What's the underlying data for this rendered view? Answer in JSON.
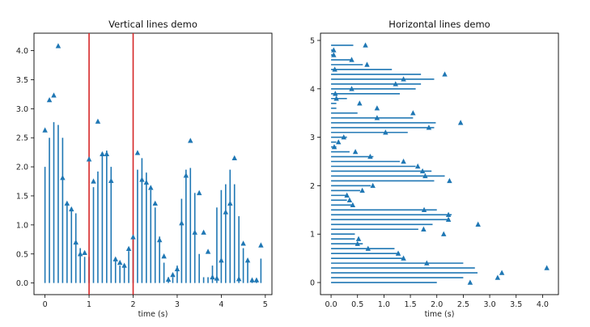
{
  "chart_data": [
    {
      "type": "vlines",
      "title": "Vertical lines demo",
      "xlabel": "time (s)",
      "ylabel": "",
      "xlim": [
        -0.25,
        5.15
      ],
      "ylim": [
        -0.2,
        4.3
      ],
      "xticks": [
        0,
        1,
        2,
        3,
        4,
        5
      ],
      "xtick_labels": [
        "0",
        "1",
        "2",
        "3",
        "4",
        "5"
      ],
      "yticks": [
        0.0,
        0.5,
        1.0,
        1.5,
        2.0,
        2.5,
        3.0,
        3.5,
        4.0
      ],
      "ytick_labels": [
        "0.0",
        "0.5",
        "1.0",
        "1.5",
        "2.0",
        "2.5",
        "3.0",
        "3.5",
        "4.0"
      ],
      "grid": false,
      "line_color": "#1f77b4",
      "marker_color": "#1f77b4",
      "reference_lines": {
        "x": [
          1,
          2
        ],
        "color": "#d62728"
      },
      "x": [
        0.0,
        0.1,
        0.2,
        0.3,
        0.4,
        0.5,
        0.6,
        0.7,
        0.8,
        0.9,
        1.0,
        1.1,
        1.2,
        1.3,
        1.4,
        1.5,
        1.6,
        1.7,
        1.8,
        1.9,
        2.0,
        2.1,
        2.2,
        2.3,
        2.4,
        2.5,
        2.6,
        2.7,
        2.8,
        2.9,
        3.0,
        3.1,
        3.2,
        3.3,
        3.4,
        3.5,
        3.6,
        3.7,
        3.8,
        3.9,
        4.0,
        4.1,
        4.2,
        4.3,
        4.4,
        4.5,
        4.6,
        4.7,
        4.8,
        4.9
      ],
      "line_values": [
        2.0,
        2.5,
        2.77,
        2.72,
        2.5,
        1.35,
        1.3,
        1.2,
        0.6,
        0.45,
        0.45,
        1.65,
        1.92,
        2.25,
        2.28,
        2.0,
        0.4,
        0.3,
        0.3,
        0.55,
        0.75,
        1.95,
        2.15,
        1.9,
        1.6,
        1.3,
        0.8,
        0.35,
        0.1,
        0.1,
        0.3,
        1.45,
        1.95,
        1.98,
        1.55,
        0.5,
        0.1,
        0.1,
        0.3,
        1.3,
        1.6,
        1.7,
        1.95,
        1.7,
        1.15,
        0.6,
        0.4,
        0.05,
        0.05,
        0.42
      ],
      "marker_values": [
        2.63,
        3.15,
        3.23,
        4.08,
        1.81,
        1.37,
        1.27,
        0.7,
        0.5,
        0.52,
        2.13,
        1.75,
        2.78,
        2.22,
        2.22,
        1.76,
        0.41,
        0.35,
        0.3,
        0.59,
        0.79,
        2.24,
        1.78,
        1.73,
        1.64,
        1.37,
        0.74,
        0.46,
        0.06,
        0.14,
        0.24,
        1.03,
        1.85,
        2.45,
        0.87,
        1.55,
        0.87,
        0.54,
        0.1,
        0.08,
        0.39,
        1.22,
        1.37,
        2.15,
        0.07,
        0.68,
        0.39,
        0.05,
        0.05,
        0.65
      ]
    },
    {
      "type": "hlines",
      "title": "Horizontal lines demo",
      "xlabel": "time (s)",
      "ylabel": "",
      "xlim": [
        -0.2,
        4.3
      ],
      "ylim": [
        -0.25,
        5.15
      ],
      "xticks": [
        0.0,
        0.5,
        1.0,
        1.5,
        2.0,
        2.5,
        3.0,
        3.5,
        4.0
      ],
      "xtick_labels": [
        "0.0",
        "0.5",
        "1.0",
        "1.5",
        "2.0",
        "2.5",
        "3.0",
        "3.5",
        "4.0"
      ],
      "yticks": [
        0,
        1,
        2,
        3,
        4,
        5
      ],
      "ytick_labels": [
        "0",
        "1",
        "2",
        "3",
        "4",
        "5"
      ],
      "grid": false,
      "line_color": "#1f77b4",
      "marker_color": "#1f77b4",
      "y": [
        0.0,
        0.1,
        0.2,
        0.3,
        0.4,
        0.5,
        0.6,
        0.7,
        0.8,
        0.9,
        1.0,
        1.1,
        1.2,
        1.3,
        1.4,
        1.5,
        1.6,
        1.7,
        1.8,
        1.9,
        2.0,
        2.1,
        2.2,
        2.3,
        2.4,
        2.5,
        2.6,
        2.7,
        2.8,
        2.9,
        3.0,
        3.1,
        3.2,
        3.3,
        3.4,
        3.5,
        3.6,
        3.7,
        3.8,
        3.9,
        4.0,
        4.1,
        4.2,
        4.3,
        4.4,
        4.5,
        4.6,
        4.7,
        4.8,
        4.9
      ],
      "line_values": [
        2.0,
        2.5,
        2.77,
        2.72,
        2.5,
        1.35,
        1.3,
        1.2,
        0.6,
        0.45,
        0.45,
        1.65,
        1.92,
        2.25,
        2.28,
        2.0,
        0.4,
        0.3,
        0.3,
        0.55,
        0.75,
        1.95,
        2.15,
        1.9,
        1.6,
        1.3,
        0.8,
        0.35,
        0.1,
        0.1,
        0.3,
        1.45,
        1.95,
        1.98,
        1.55,
        0.5,
        0.1,
        0.1,
        0.3,
        1.3,
        1.6,
        1.7,
        1.95,
        1.7,
        1.15,
        0.6,
        0.4,
        0.05,
        0.05,
        0.42
      ],
      "marker_values": [
        2.63,
        3.15,
        3.23,
        4.08,
        1.81,
        1.37,
        1.27,
        0.7,
        0.5,
        0.52,
        2.13,
        1.75,
        2.78,
        2.22,
        2.22,
        1.76,
        0.41,
        0.35,
        0.3,
        0.59,
        0.79,
        2.24,
        1.78,
        1.73,
        1.64,
        1.37,
        0.74,
        0.46,
        0.06,
        0.14,
        0.24,
        1.03,
        1.85,
        2.45,
        0.87,
        1.55,
        0.87,
        0.54,
        0.1,
        0.08,
        0.39,
        1.22,
        1.37,
        2.15,
        0.07,
        0.68,
        0.39,
        0.05,
        0.05,
        0.65
      ]
    }
  ]
}
